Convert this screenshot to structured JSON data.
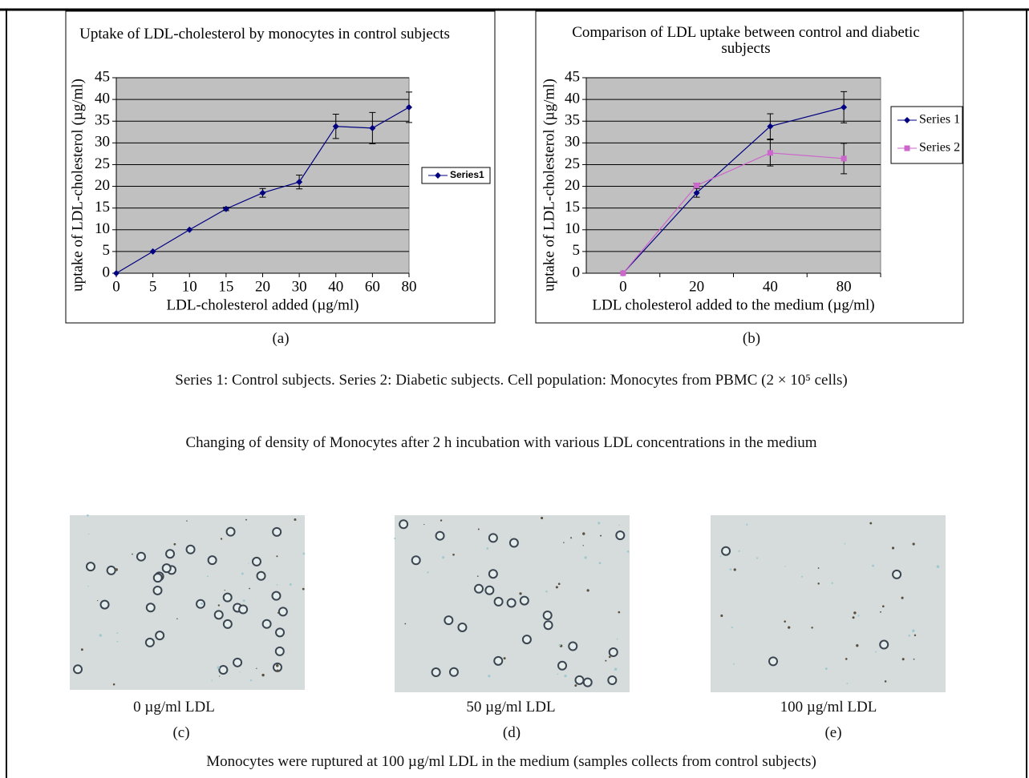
{
  "chart_data": [
    {
      "type": "line",
      "title": "Uptake of LDL-cholesterol by monocytes in control subjects",
      "x_label": "LDL-cholesterol added (µg/ml)",
      "y_label": "uptake of LDL-cholesterol (µg/ml)",
      "categories": [
        "0",
        "5",
        "10",
        "15",
        "20",
        "30",
        "40",
        "60",
        "80"
      ],
      "series": [
        {
          "name": "Series1",
          "color": "#000080",
          "marker": "diamond",
          "values": [
            0,
            5,
            10,
            14.8,
            18.5,
            21,
            33.8,
            33.4,
            38.2
          ],
          "errors": [
            0,
            0,
            0,
            0.4,
            1,
            1.6,
            2.8,
            3.6,
            3.5
          ]
        }
      ],
      "ylim": [
        0,
        45
      ],
      "yticks": [
        0,
        5,
        10,
        15,
        20,
        25,
        30,
        35,
        40,
        45
      ],
      "grid": true,
      "legend": "right",
      "background": "#c0c0c0"
    },
    {
      "type": "line",
      "title": "Comparison of LDL uptake between control and diabetic subjects",
      "x_label": "LDL cholesterol  added to the medium (µg/ml)",
      "y_label": "uptake of LDL-cholesterol (µg/ml)",
      "categories": [
        "0",
        "20",
        "40",
        "80"
      ],
      "series": [
        {
          "name": "Series 1",
          "color": "#000080",
          "marker": "diamond",
          "values": [
            0,
            18.5,
            33.8,
            38.2
          ],
          "errors": [
            0,
            1,
            2.9,
            3.6
          ]
        },
        {
          "name": "Series 2",
          "color": "#cc66cc",
          "marker": "square",
          "values": [
            0,
            20.2,
            27.7,
            26.4
          ],
          "errors": [
            0,
            0.5,
            3,
            3.5
          ]
        }
      ],
      "ylim": [
        0,
        45
      ],
      "yticks": [
        0,
        5,
        10,
        15,
        20,
        25,
        30,
        35,
        40,
        45
      ],
      "grid": true,
      "legend": "right",
      "background": "#c0c0c0"
    }
  ],
  "panel_labels": [
    "(a)",
    "(b)"
  ],
  "series_caption": "Series 1: Control subjects. Series 2: Diabetic subjects. Cell population: Monocytes from PBMC (2 × 10⁵ cells)",
  "micrograph_heading": "Changing of density of Monocytes after 2 h incubation with various LDL concentrations in the medium",
  "micrographs": [
    {
      "label": "0 µg/ml LDL",
      "letter": "(c)"
    },
    {
      "label": "50 µg/ml LDL",
      "letter": "(d)"
    },
    {
      "label": "100 µg/ml LDL",
      "letter": "(e)"
    }
  ],
  "footer": "Monocytes were ruptured at 100 µg/ml LDL in the medium (samples collects from control subjects)"
}
